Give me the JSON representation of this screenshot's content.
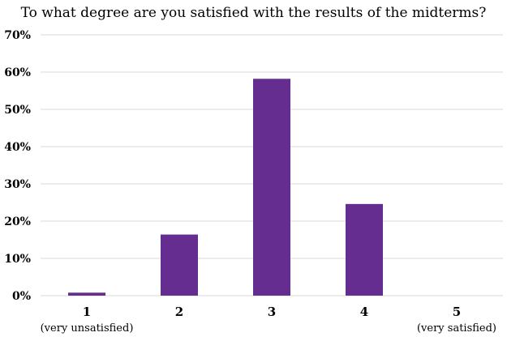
{
  "chart_data": {
    "type": "bar",
    "title": "To what degree are you satisfied with the results of the midterms?",
    "categories": [
      "1",
      "2",
      "3",
      "4",
      "5"
    ],
    "category_sublabels": [
      "(very unsatisfied)",
      "",
      "",
      "",
      "(very satisfied)"
    ],
    "values": [
      0.8,
      16.4,
      58.2,
      24.6,
      0.0
    ],
    "ylim": [
      0,
      70
    ],
    "yticks": [
      0,
      10,
      20,
      30,
      40,
      50,
      60,
      70
    ],
    "ytick_labels": [
      "0%",
      "10%",
      "20%",
      "30%",
      "40%",
      "50%",
      "60%",
      "70%"
    ],
    "xlabel": "",
    "ylabel": "",
    "grid": true,
    "bar_color": "#662D91",
    "grid_color": "#D9D9D9"
  }
}
